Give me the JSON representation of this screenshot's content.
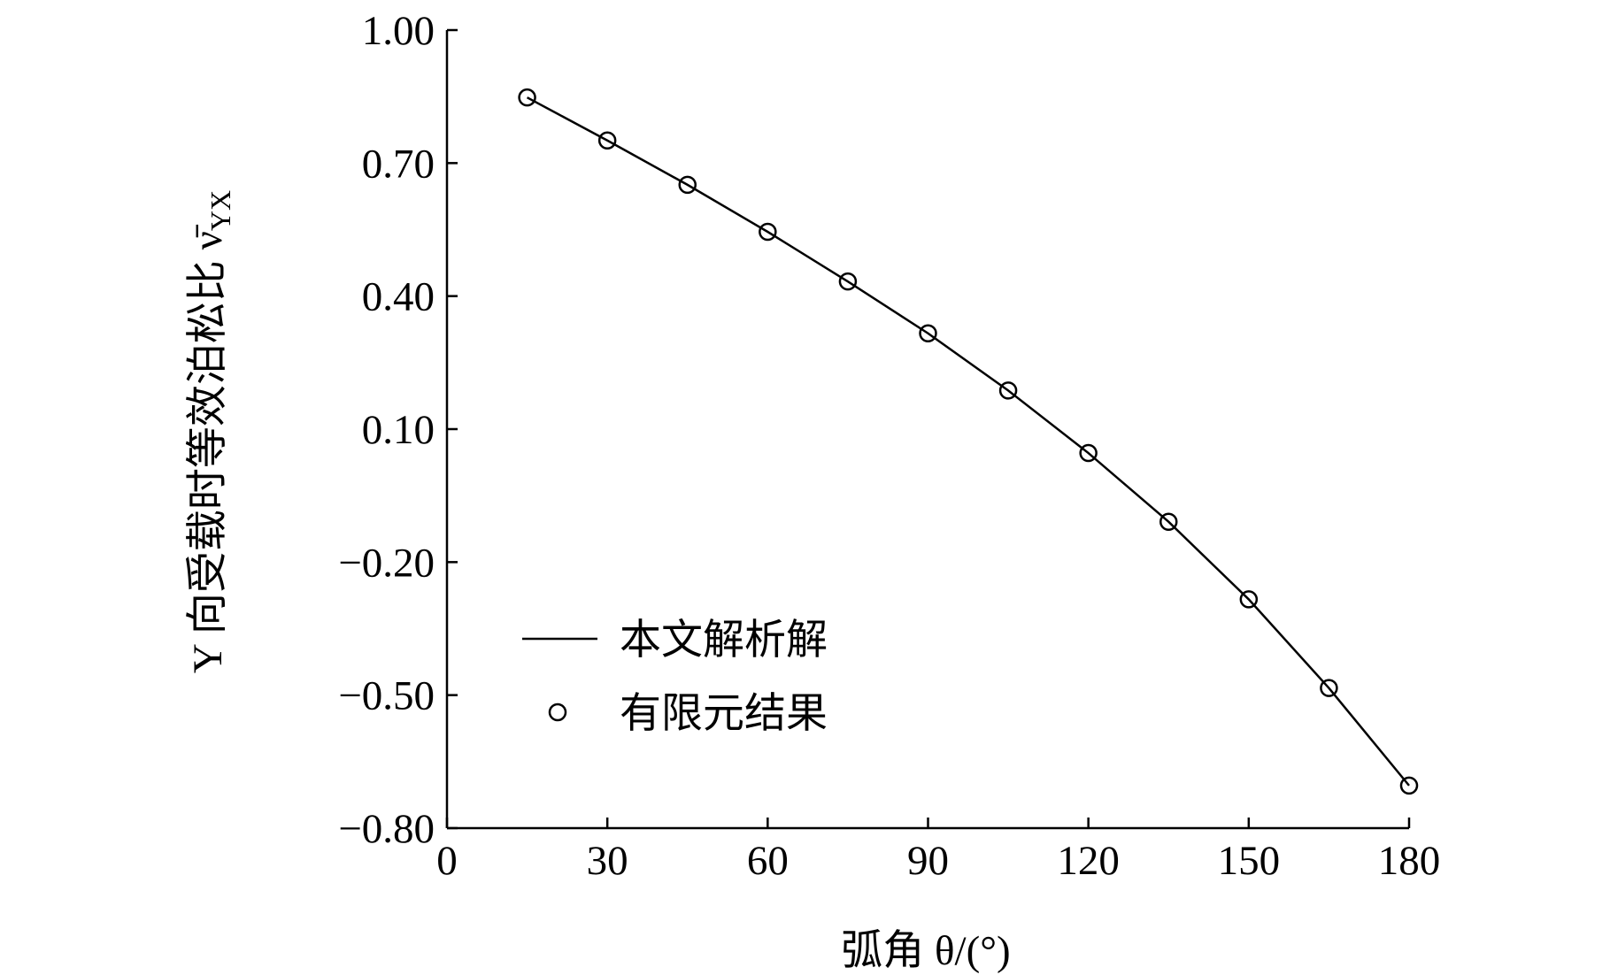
{
  "chart_data": {
    "type": "line",
    "y_label": "Y 向受载时等效泊松比 ν̄",
    "y_label_subscript": "YX",
    "x_label": "弧角 θ/(°)",
    "x": [
      15,
      30,
      45,
      60,
      75,
      90,
      105,
      120,
      135,
      150,
      165,
      180
    ],
    "series": [
      {
        "name": "本文解析解",
        "type": "line",
        "color": "#000000",
        "values": [
          0.848,
          0.751,
          0.651,
          0.545,
          0.433,
          0.316,
          0.187,
          0.046,
          -0.109,
          -0.284,
          -0.484,
          -0.704
        ]
      },
      {
        "name": "有限元结果",
        "type": "scatter",
        "color": "#000000",
        "values": [
          0.848,
          0.751,
          0.651,
          0.545,
          0.433,
          0.316,
          0.187,
          0.046,
          -0.109,
          -0.284,
          -0.484,
          -0.704
        ]
      }
    ],
    "xlim": [
      0,
      180
    ],
    "ylim": [
      -0.8,
      1.0
    ],
    "xticks": [
      0,
      30,
      60,
      90,
      120,
      150,
      180
    ],
    "yticks": [
      {
        "value": -0.8,
        "label": "−0.80"
      },
      {
        "value": -0.5,
        "label": "−0.50"
      },
      {
        "value": -0.2,
        "label": "−0.20"
      },
      {
        "value": 0.1,
        "label": "0.10"
      },
      {
        "value": 0.4,
        "label": "0.40"
      },
      {
        "value": 0.7,
        "label": "0.70"
      },
      {
        "value": 1.0,
        "label": "1.00"
      }
    ],
    "legend": "lower-left",
    "grid": false
  }
}
